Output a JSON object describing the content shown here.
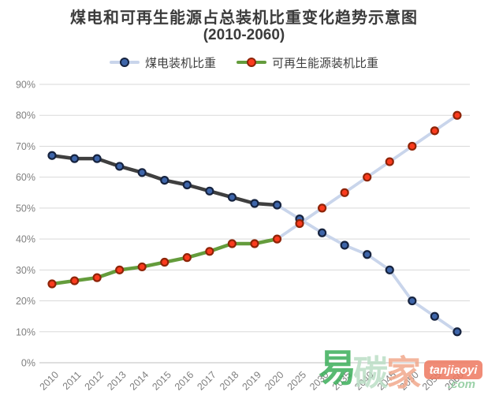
{
  "title": {
    "line1": "煤电和可再生能源占总装机比重变化趋势示意图",
    "line2": "(2010-2060)"
  },
  "chart_data": {
    "type": "line",
    "title": "煤电和可再生能源占总装机比重变化趋势示意图 (2010-2060)",
    "categories": [
      "2010",
      "2011",
      "2012",
      "2013",
      "2014",
      "2015",
      "2016",
      "2017",
      "2018",
      "2019",
      "2020",
      "2025",
      "2030",
      "2035",
      "2040",
      "2045",
      "2050",
      "2055",
      "2060"
    ],
    "series": [
      {
        "name": "煤电装机比重",
        "values": [
          67,
          66,
          66,
          63.5,
          61.5,
          59,
          57.5,
          55.5,
          53.5,
          51.5,
          51,
          46.5,
          42,
          38,
          35,
          30,
          20,
          15,
          10
        ],
        "solid_until_index": 10,
        "line_color": "#3F3F3F",
        "projection_color": "#C9D5EB",
        "legend_line_color": "#C9D5EB",
        "marker_fill": "#3E65A9",
        "marker_stroke": "#16233F"
      },
      {
        "name": "可再生能源装机比重",
        "values": [
          25.5,
          26.5,
          27.5,
          30,
          31,
          32.5,
          34,
          36,
          38.5,
          38.5,
          40,
          45,
          50,
          55,
          60,
          65,
          70,
          75,
          80
        ],
        "solid_until_index": 10,
        "line_color": "#649C3C",
        "projection_color": "#C9D5EB",
        "legend_line_color": "#649C3C",
        "marker_fill": "#FB3B1E",
        "marker_stroke": "#8E2408"
      }
    ],
    "ylim": [
      0,
      90
    ],
    "y_tick_labels": [
      "0%",
      "10%",
      "20%",
      "30%",
      "40%",
      "50%",
      "60%",
      "70%",
      "80%",
      "90%"
    ],
    "grid": true,
    "legend_position": "top",
    "grid_color": "#D9D9D9",
    "axis_line_color": "#BFBFBF",
    "tick_color": "#7F7F7F"
  },
  "watermark": {
    "char_1": "易",
    "char_2": "碳",
    "char_3": "家",
    "badge": "tanjiaoyi",
    "suffix": ".com",
    "colors": {
      "green": "#3BAE5A",
      "pale_green": "#BCDFC6",
      "coral": "#F2A98C",
      "badge_bg": "#EE7960",
      "com_green": "#8BCB9B"
    }
  }
}
